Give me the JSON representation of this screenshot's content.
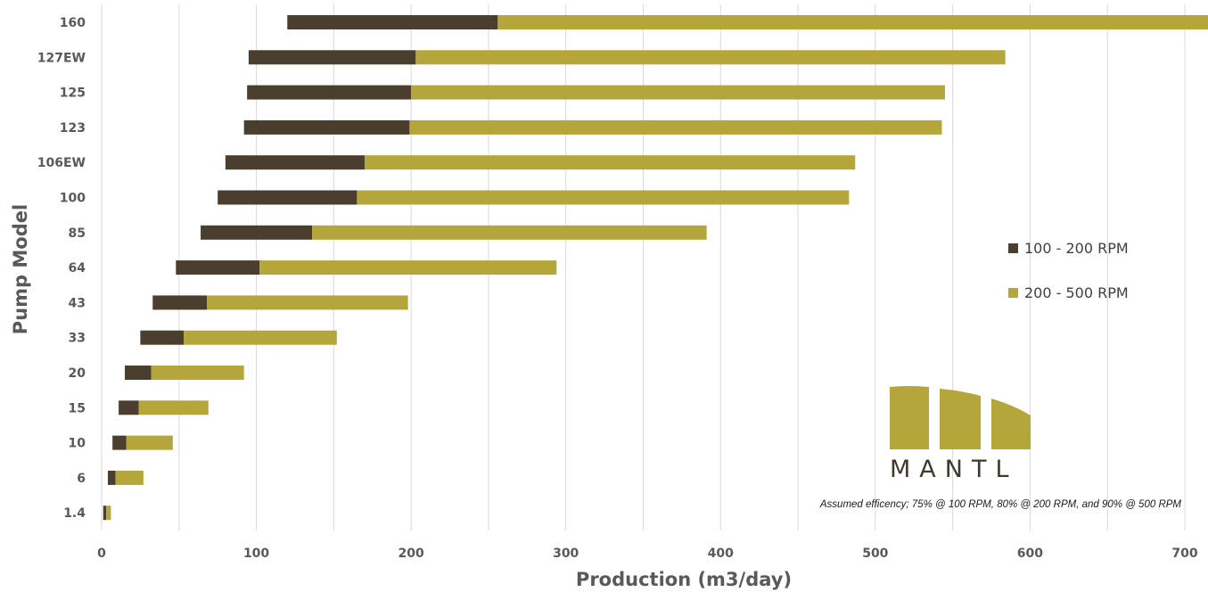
{
  "chart_data": {
    "type": "bar",
    "orientation": "horizontal",
    "stacked": true,
    "title": "",
    "xlabel": "Production (m3/day)",
    "ylabel": "Pump Model",
    "xlim": [
      0,
      715
    ],
    "xticks": [
      0,
      100,
      200,
      300,
      400,
      500,
      600,
      700
    ],
    "grid": true,
    "legend_position": "right",
    "categories": [
      "160",
      "127EW",
      "125",
      "123",
      "106EW",
      "100",
      "85",
      "64",
      "43",
      "33",
      "20",
      "15",
      "10",
      "6",
      "1.4"
    ],
    "series": [
      {
        "name": "100 - 200 RPM",
        "color": "#4a3f2e",
        "ranges": [
          [
            120,
            256
          ],
          [
            95,
            203
          ],
          [
            94,
            200
          ],
          [
            92,
            199
          ],
          [
            80,
            170
          ],
          [
            75,
            165
          ],
          [
            64,
            136
          ],
          [
            48,
            102
          ],
          [
            33,
            68
          ],
          [
            25,
            53
          ],
          [
            15,
            32
          ],
          [
            11,
            24
          ],
          [
            7,
            16
          ],
          [
            4,
            9
          ],
          [
            1,
            3
          ]
        ]
      },
      {
        "name": "200 - 500 RPM",
        "color": "#b5a63b",
        "ranges": [
          [
            256,
            715
          ],
          [
            203,
            584
          ],
          [
            200,
            545
          ],
          [
            199,
            543
          ],
          [
            170,
            487
          ],
          [
            165,
            483
          ],
          [
            136,
            391
          ],
          [
            102,
            294
          ],
          [
            68,
            198
          ],
          [
            53,
            152
          ],
          [
            32,
            92
          ],
          [
            24,
            69
          ],
          [
            16,
            46
          ],
          [
            9,
            27
          ],
          [
            3,
            6
          ]
        ]
      }
    ],
    "annotation": "Assumed efficency; 75% @ 100 RPM, 80% @ 200 RPM, and 90% @ 500 RPM"
  },
  "logo": {
    "text": "MANTL",
    "color": "#b5a63b"
  }
}
